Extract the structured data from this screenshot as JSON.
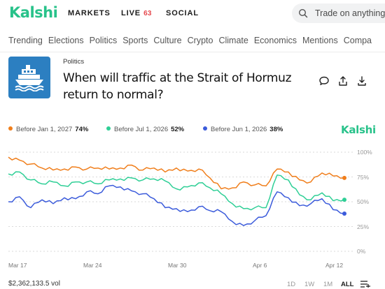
{
  "brand": {
    "logo": "Kalshi"
  },
  "nav": {
    "markets": "MARKETS",
    "live": "LIVE",
    "live_count": "63",
    "social": "SOCIAL"
  },
  "search": {
    "placeholder": "Trade on anything"
  },
  "categories": [
    "Trending",
    "Elections",
    "Politics",
    "Sports",
    "Culture",
    "Crypto",
    "Climate",
    "Economics",
    "Mentions",
    "Compa"
  ],
  "market": {
    "category": "Politics",
    "title": "When will traffic at the Strait of Hormuz return to normal?",
    "icon": "ship-icon"
  },
  "actions": [
    "comment-icon",
    "share-icon",
    "download-icon"
  ],
  "legend": [
    {
      "label": "Before Jan 1, 2027",
      "pct": "74%",
      "color": "#f07e1b"
    },
    {
      "label": "Before Jul 1, 2026",
      "pct": "52%",
      "color": "#2fcf96"
    },
    {
      "label": "Before Jun 1, 2026",
      "pct": "38%",
      "color": "#3b5bdb"
    }
  ],
  "chart_brand": "Kalshi",
  "chart_data": {
    "type": "line",
    "x_ticks": [
      "Mar 17",
      "Mar 24",
      "Mar 30",
      "Apr 6",
      "Apr 12"
    ],
    "y_ticks": [
      "100%",
      "75%",
      "50%",
      "25%",
      "0%"
    ],
    "ylim": [
      0,
      100
    ],
    "grid": true,
    "series": [
      {
        "name": "Before Jan 1, 2027",
        "color": "#f07e1b",
        "x": [
          "Mar 14",
          "Mar 15",
          "Mar 16",
          "Mar 17",
          "Mar 18",
          "Mar 19",
          "Mar 20",
          "Mar 21",
          "Mar 22",
          "Mar 23",
          "Mar 24",
          "Mar 25",
          "Mar 26",
          "Mar 27",
          "Mar 28",
          "Mar 29",
          "Mar 30",
          "Mar 31",
          "Apr 1",
          "Apr 2",
          "Apr 3",
          "Apr 4",
          "Apr 5",
          "Apr 6",
          "Apr 7",
          "Apr 8",
          "Apr 9",
          "Apr 10",
          "Apr 11",
          "Apr 12",
          "Apr 13"
        ],
        "values": [
          95,
          92,
          88,
          84,
          82,
          83,
          85,
          83,
          84,
          83,
          84,
          87,
          82,
          84,
          80,
          84,
          81,
          83,
          74,
          63,
          64,
          70,
          67,
          66,
          83,
          80,
          72,
          70,
          79,
          76,
          74
        ]
      },
      {
        "name": "Before Jul 1, 2026",
        "color": "#2fcf96",
        "x": [
          "Mar 14",
          "Mar 15",
          "Mar 16",
          "Mar 17",
          "Mar 18",
          "Mar 19",
          "Mar 20",
          "Mar 21",
          "Mar 22",
          "Mar 23",
          "Mar 24",
          "Mar 25",
          "Mar 26",
          "Mar 27",
          "Mar 28",
          "Mar 29",
          "Mar 30",
          "Mar 31",
          "Apr 1",
          "Apr 2",
          "Apr 3",
          "Apr 4",
          "Apr 5",
          "Apr 6",
          "Apr 7",
          "Apr 8",
          "Apr 9",
          "Apr 10",
          "Apr 11",
          "Apr 12",
          "Apr 13"
        ],
        "values": [
          78,
          80,
          72,
          68,
          70,
          66,
          70,
          70,
          68,
          72,
          73,
          74,
          72,
          73,
          71,
          63,
          65,
          69,
          64,
          58,
          48,
          43,
          44,
          44,
          77,
          72,
          57,
          52,
          59,
          51,
          52
        ]
      },
      {
        "name": "Before Jun 1, 2026",
        "color": "#3b5bdb",
        "x": [
          "Mar 14",
          "Mar 15",
          "Mar 16",
          "Mar 17",
          "Mar 18",
          "Mar 19",
          "Mar 20",
          "Mar 21",
          "Mar 22",
          "Mar 23",
          "Mar 24",
          "Mar 25",
          "Mar 26",
          "Mar 27",
          "Mar 28",
          "Mar 29",
          "Mar 30",
          "Mar 31",
          "Apr 1",
          "Apr 2",
          "Apr 3",
          "Apr 4",
          "Apr 5",
          "Apr 6",
          "Apr 7",
          "Apr 8",
          "Apr 9",
          "Apr 10",
          "Apr 11",
          "Apr 12",
          "Apr 13"
        ],
        "values": [
          50,
          55,
          44,
          52,
          48,
          54,
          53,
          60,
          58,
          66,
          65,
          61,
          58,
          53,
          44,
          43,
          40,
          45,
          41,
          40,
          30,
          26,
          31,
          36,
          60,
          54,
          46,
          48,
          53,
          42,
          38
        ]
      }
    ]
  },
  "footer": {
    "volume": "$2,362,133.5 vol",
    "ranges": [
      "1D",
      "1W",
      "1M",
      "ALL"
    ],
    "active_range": "ALL"
  }
}
